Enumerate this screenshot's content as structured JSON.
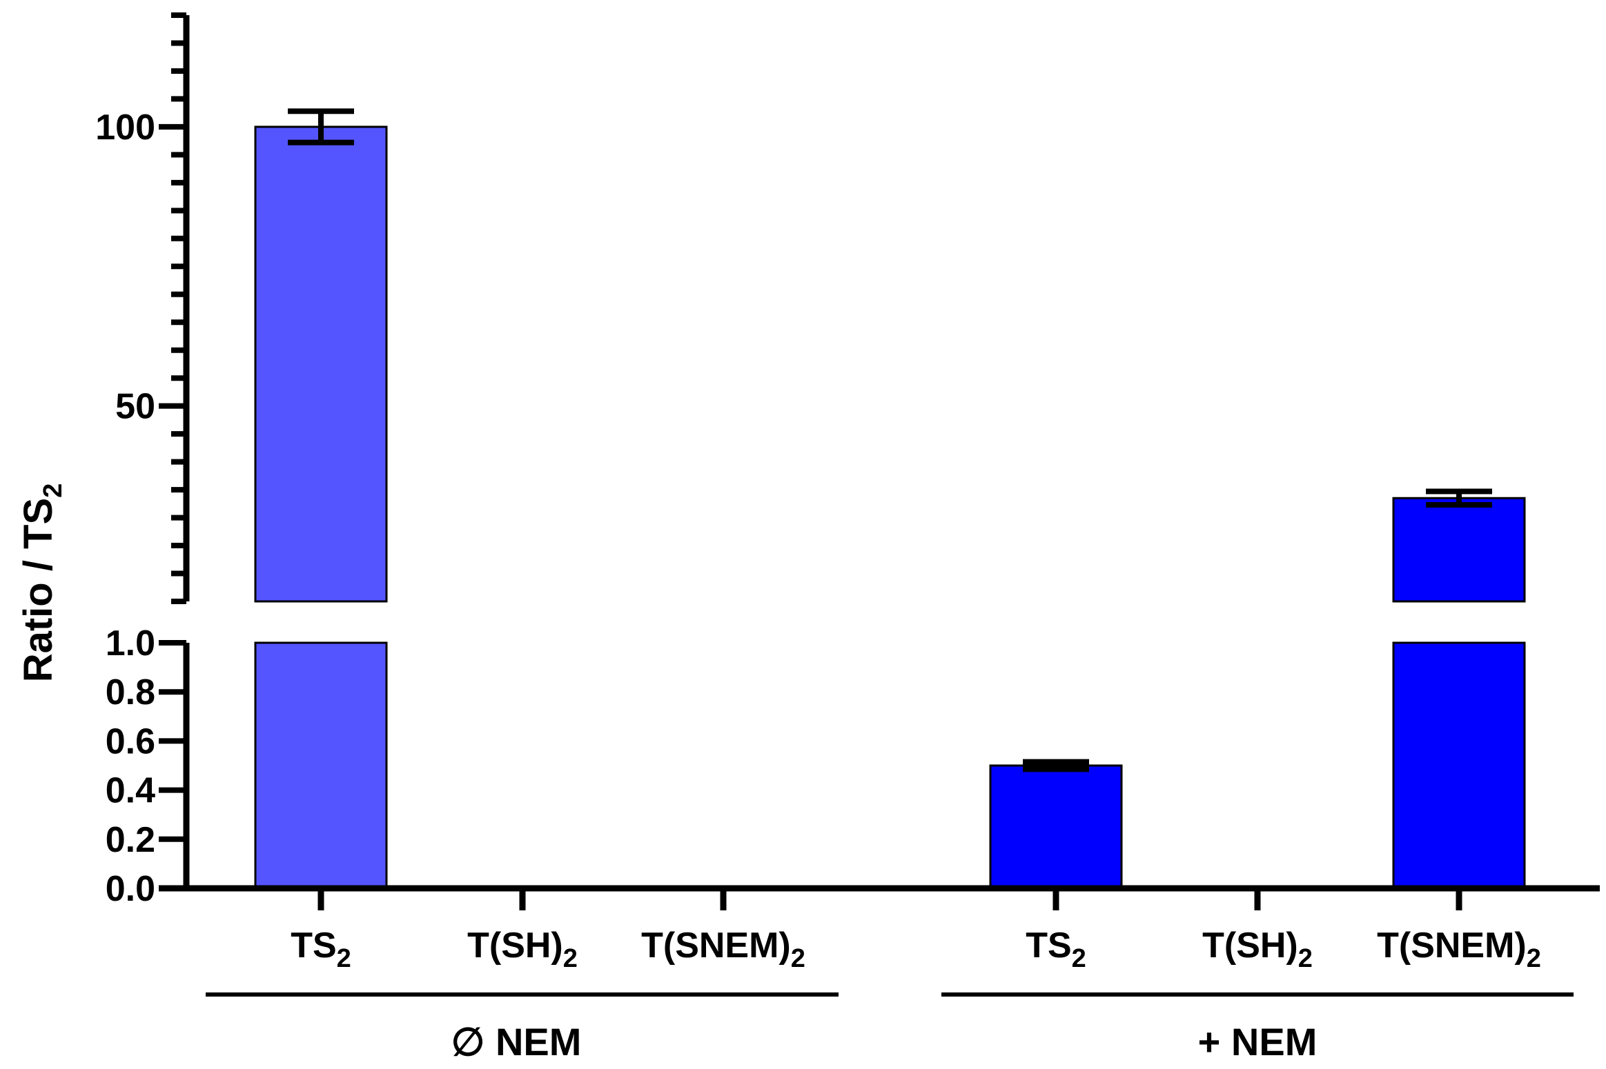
{
  "chart_data": {
    "type": "bar",
    "ylabel_main": "Ratio / TS",
    "ylabel_sub": "2",
    "axis_break": {
      "upper_range": [
        15,
        120
      ],
      "lower_range": [
        0,
        1.0
      ]
    },
    "upper_ticks": [
      "50",
      "100"
    ],
    "lower_ticks": [
      "0.0",
      "0.2",
      "0.4",
      "0.6",
      "0.8",
      "1.0"
    ],
    "groups": [
      {
        "label": "∅ NEM",
        "categories": [
          {
            "main": "TS",
            "sub": "2"
          },
          {
            "main": "T(SH)",
            "sub": "2"
          },
          {
            "main": "T(SNEM)",
            "sub": "2"
          }
        ],
        "values": [
          100,
          0,
          0
        ],
        "errors": [
          2.8,
          0,
          0
        ],
        "color": "#5555ff"
      },
      {
        "label": "+ NEM",
        "categories": [
          {
            "main": "TS",
            "sub": "2"
          },
          {
            "main": "T(SH)",
            "sub": "2"
          },
          {
            "main": "T(SNEM)",
            "sub": "2"
          }
        ],
        "values": [
          0.5,
          0,
          33.5
        ],
        "errors": [
          0.015,
          0,
          1.2
        ],
        "color": "#0000ff"
      }
    ]
  }
}
